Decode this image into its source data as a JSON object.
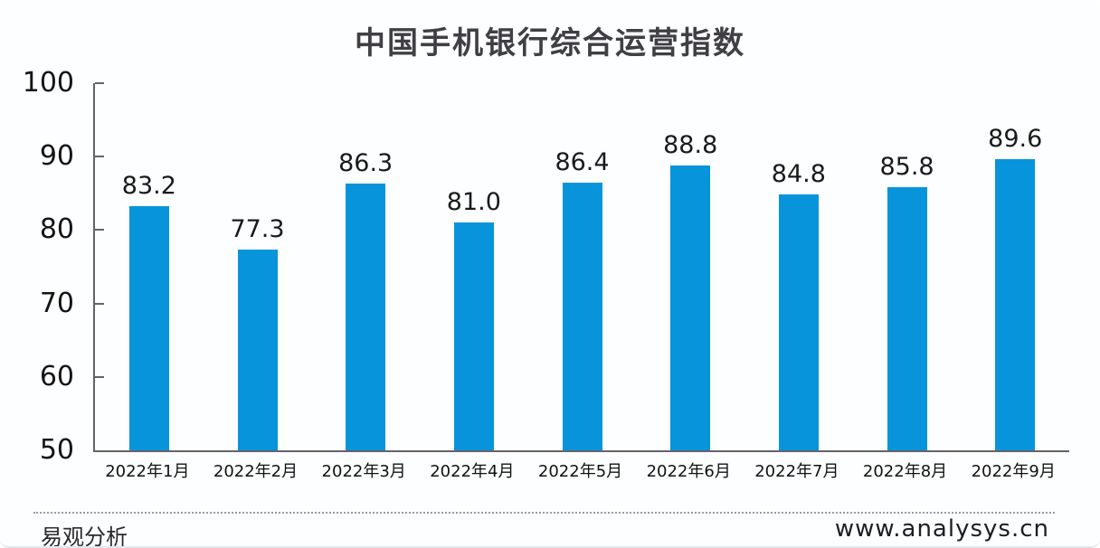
{
  "chart_data": {
    "type": "bar",
    "title": "中国手机银行综合运营指数",
    "categories": [
      "2022年1月",
      "2022年2月",
      "2022年3月",
      "2022年4月",
      "2022年5月",
      "2022年6月",
      "2022年7月",
      "2022年8月",
      "2022年9月"
    ],
    "values": [
      83.2,
      77.3,
      86.3,
      81.0,
      86.4,
      88.8,
      84.8,
      85.8,
      89.6
    ],
    "xlabel": "",
    "ylabel": "",
    "ylim": [
      50,
      100
    ],
    "yticks": [
      100,
      90,
      80,
      70,
      60,
      50
    ],
    "grid": false,
    "legend": "none",
    "bar_color": "#0894DB",
    "axis_color": "#66626b"
  },
  "footer": {
    "source_label": "易观分析",
    "website": "www.analysys.cn"
  }
}
